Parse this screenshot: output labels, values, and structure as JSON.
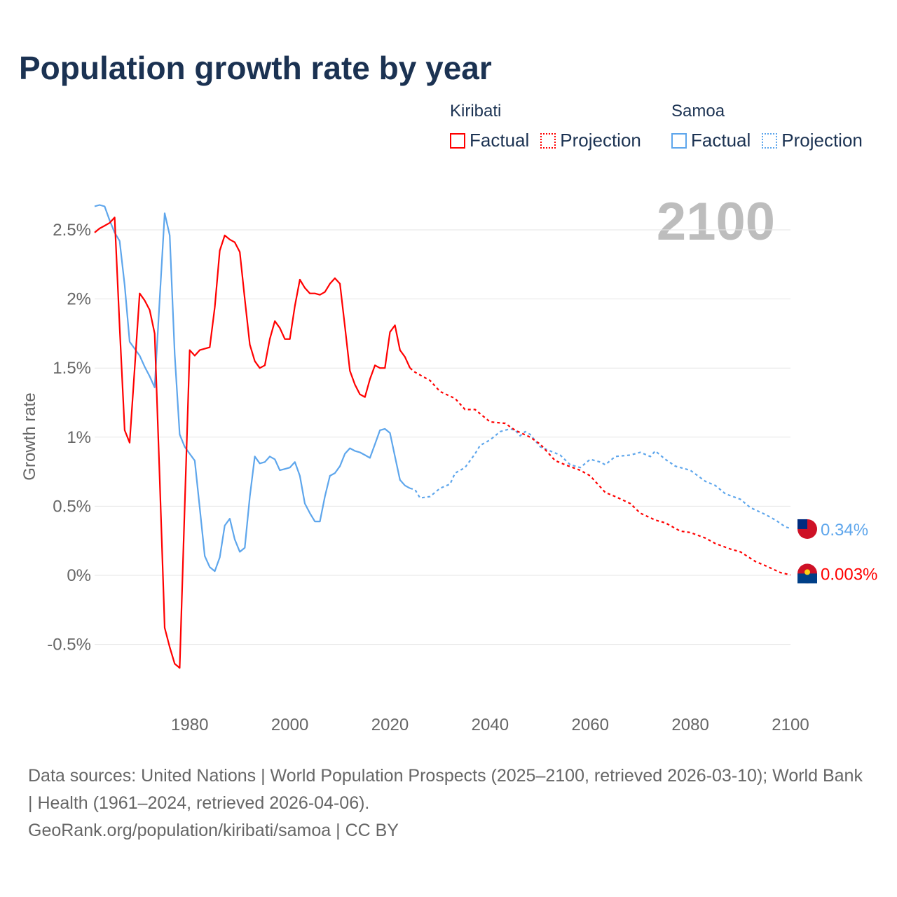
{
  "title": "Population growth rate by year",
  "legend": {
    "groups": [
      {
        "name": "Kiribati",
        "factual": "Factual",
        "projection": "Projection",
        "color": "#ff0000"
      },
      {
        "name": "Samoa",
        "factual": "Factual",
        "projection": "Projection",
        "color": "#5ea6ec"
      }
    ]
  },
  "footer": {
    "sources": "Data sources: United Nations | World Population Prospects (2025–2100, retrieved 2026-03-10); World Bank | Health (1961–2024, retrieved 2026-04-06).",
    "link": "GeoRank.org/population/kiribati/samoa | CC BY"
  },
  "chart_data": {
    "type": "line",
    "title": "Population growth rate by year",
    "current_year_label": "2100",
    "xlabel": "",
    "ylabel": "Growth rate",
    "xlim": [
      1961,
      2100
    ],
    "ylim": [
      -0.8,
      2.75
    ],
    "x_ticks": [
      {
        "v": 1980,
        "label": "1980"
      },
      {
        "v": 2000,
        "label": "2000"
      },
      {
        "v": 2020,
        "label": "2020"
      },
      {
        "v": 2040,
        "label": "2040"
      },
      {
        "v": 2060,
        "label": "2060"
      },
      {
        "v": 2080,
        "label": "2080"
      },
      {
        "v": 2100,
        "label": "2100"
      }
    ],
    "y_ticks": [
      {
        "v": 2.5,
        "label": "2.5%"
      },
      {
        "v": 2,
        "label": "2%"
      },
      {
        "v": 1.5,
        "label": "1.5%"
      },
      {
        "v": 1,
        "label": "1%"
      },
      {
        "v": 0.5,
        "label": "0.5%"
      },
      {
        "v": 0,
        "label": "0%"
      },
      {
        "v": -0.5,
        "label": "-0.5%"
      }
    ],
    "grid": true,
    "series": [
      {
        "name": "Kiribati",
        "color": "#ff0000",
        "end_label": "0.003%",
        "factual": [
          [
            1961,
            2.48
          ],
          [
            1962,
            2.51
          ],
          [
            1963,
            2.53
          ],
          [
            1964,
            2.55
          ],
          [
            1965,
            2.59
          ],
          [
            1966,
            1.8
          ],
          [
            1967,
            1.05
          ],
          [
            1968,
            0.96
          ],
          [
            1969,
            1.5
          ],
          [
            1970,
            2.04
          ],
          [
            1971,
            1.99
          ],
          [
            1972,
            1.92
          ],
          [
            1973,
            1.75
          ],
          [
            1974,
            0.7
          ],
          [
            1975,
            -0.38
          ],
          [
            1976,
            -0.52
          ],
          [
            1977,
            -0.64
          ],
          [
            1978,
            -0.67
          ],
          [
            1979,
            0.5
          ],
          [
            1980,
            1.63
          ],
          [
            1981,
            1.59
          ],
          [
            1982,
            1.63
          ],
          [
            1983,
            1.64
          ],
          [
            1984,
            1.65
          ],
          [
            1985,
            1.94
          ],
          [
            1986,
            2.35
          ],
          [
            1987,
            2.46
          ],
          [
            1988,
            2.43
          ],
          [
            1989,
            2.41
          ],
          [
            1990,
            2.34
          ],
          [
            1991,
            2.0
          ],
          [
            1992,
            1.67
          ],
          [
            1993,
            1.55
          ],
          [
            1994,
            1.5
          ],
          [
            1995,
            1.52
          ],
          [
            1996,
            1.71
          ],
          [
            1997,
            1.84
          ],
          [
            1998,
            1.79
          ],
          [
            1999,
            1.71
          ],
          [
            2000,
            1.71
          ],
          [
            2001,
            1.95
          ],
          [
            2002,
            2.14
          ],
          [
            2003,
            2.08
          ],
          [
            2004,
            2.04
          ],
          [
            2005,
            2.04
          ],
          [
            2006,
            2.03
          ],
          [
            2007,
            2.05
          ],
          [
            2008,
            2.11
          ],
          [
            2009,
            2.15
          ],
          [
            2010,
            2.11
          ],
          [
            2011,
            1.8
          ],
          [
            2012,
            1.48
          ],
          [
            2013,
            1.38
          ],
          [
            2014,
            1.31
          ],
          [
            2015,
            1.29
          ],
          [
            2016,
            1.42
          ],
          [
            2017,
            1.52
          ],
          [
            2018,
            1.5
          ],
          [
            2019,
            1.5
          ],
          [
            2020,
            1.76
          ],
          [
            2021,
            1.81
          ],
          [
            2022,
            1.63
          ],
          [
            2023,
            1.58
          ],
          [
            2024,
            1.5
          ]
        ],
        "projection": [
          [
            2024,
            1.5
          ],
          [
            2025,
            1.47
          ],
          [
            2028,
            1.41
          ],
          [
            2030,
            1.33
          ],
          [
            2033,
            1.28
          ],
          [
            2035,
            1.2
          ],
          [
            2037,
            1.2
          ],
          [
            2040,
            1.11
          ],
          [
            2043,
            1.1
          ],
          [
            2045,
            1.05
          ],
          [
            2048,
            1.0
          ],
          [
            2050,
            0.95
          ],
          [
            2053,
            0.83
          ],
          [
            2055,
            0.8
          ],
          [
            2058,
            0.76
          ],
          [
            2060,
            0.72
          ],
          [
            2063,
            0.6
          ],
          [
            2065,
            0.57
          ],
          [
            2068,
            0.52
          ],
          [
            2070,
            0.45
          ],
          [
            2073,
            0.4
          ],
          [
            2075,
            0.38
          ],
          [
            2078,
            0.32
          ],
          [
            2080,
            0.31
          ],
          [
            2083,
            0.27
          ],
          [
            2085,
            0.23
          ],
          [
            2088,
            0.19
          ],
          [
            2090,
            0.17
          ],
          [
            2093,
            0.1
          ],
          [
            2095,
            0.07
          ],
          [
            2098,
            0.02
          ],
          [
            2100,
            0.003
          ]
        ]
      },
      {
        "name": "Samoa",
        "color": "#5ea6ec",
        "end_label": "0.34%",
        "factual": [
          [
            1961,
            2.67
          ],
          [
            1962,
            2.68
          ],
          [
            1963,
            2.67
          ],
          [
            1964,
            2.57
          ],
          [
            1965,
            2.48
          ],
          [
            1966,
            2.42
          ],
          [
            1967,
            2.1
          ],
          [
            1968,
            1.69
          ],
          [
            1969,
            1.64
          ],
          [
            1970,
            1.59
          ],
          [
            1971,
            1.51
          ],
          [
            1972,
            1.44
          ],
          [
            1973,
            1.36
          ],
          [
            1974,
            2.0
          ],
          [
            1975,
            2.62
          ],
          [
            1976,
            2.46
          ],
          [
            1977,
            1.6
          ],
          [
            1978,
            1.02
          ],
          [
            1979,
            0.93
          ],
          [
            1980,
            0.88
          ],
          [
            1981,
            0.83
          ],
          [
            1982,
            0.49
          ],
          [
            1983,
            0.14
          ],
          [
            1984,
            0.06
          ],
          [
            1985,
            0.03
          ],
          [
            1986,
            0.13
          ],
          [
            1987,
            0.36
          ],
          [
            1988,
            0.41
          ],
          [
            1989,
            0.26
          ],
          [
            1990,
            0.17
          ],
          [
            1991,
            0.2
          ],
          [
            1992,
            0.57
          ],
          [
            1993,
            0.86
          ],
          [
            1994,
            0.81
          ],
          [
            1995,
            0.82
          ],
          [
            1996,
            0.86
          ],
          [
            1997,
            0.84
          ],
          [
            1998,
            0.76
          ],
          [
            1999,
            0.77
          ],
          [
            2000,
            0.78
          ],
          [
            2001,
            0.82
          ],
          [
            2002,
            0.72
          ],
          [
            2003,
            0.52
          ],
          [
            2004,
            0.45
          ],
          [
            2005,
            0.39
          ],
          [
            2006,
            0.39
          ],
          [
            2007,
            0.57
          ],
          [
            2008,
            0.72
          ],
          [
            2009,
            0.74
          ],
          [
            2010,
            0.79
          ],
          [
            2011,
            0.88
          ],
          [
            2012,
            0.92
          ],
          [
            2013,
            0.9
          ],
          [
            2014,
            0.89
          ],
          [
            2015,
            0.87
          ],
          [
            2016,
            0.85
          ],
          [
            2017,
            0.95
          ],
          [
            2018,
            1.05
          ],
          [
            2019,
            1.06
          ],
          [
            2020,
            1.03
          ],
          [
            2021,
            0.86
          ],
          [
            2022,
            0.69
          ],
          [
            2023,
            0.65
          ],
          [
            2024,
            0.63
          ]
        ],
        "projection": [
          [
            2024,
            0.63
          ],
          [
            2025,
            0.62
          ],
          [
            2026,
            0.56
          ],
          [
            2028,
            0.57
          ],
          [
            2030,
            0.63
          ],
          [
            2032,
            0.66
          ],
          [
            2033,
            0.74
          ],
          [
            2035,
            0.78
          ],
          [
            2037,
            0.88
          ],
          [
            2038,
            0.94
          ],
          [
            2040,
            0.98
          ],
          [
            2042,
            1.04
          ],
          [
            2044,
            1.06
          ],
          [
            2045,
            1.05
          ],
          [
            2046,
            1.01
          ],
          [
            2047,
            1.04
          ],
          [
            2048,
            1.02
          ],
          [
            2050,
            0.93
          ],
          [
            2052,
            0.9
          ],
          [
            2054,
            0.87
          ],
          [
            2056,
            0.8
          ],
          [
            2058,
            0.78
          ],
          [
            2060,
            0.84
          ],
          [
            2062,
            0.82
          ],
          [
            2063,
            0.8
          ],
          [
            2065,
            0.86
          ],
          [
            2068,
            0.87
          ],
          [
            2070,
            0.89
          ],
          [
            2072,
            0.86
          ],
          [
            2073,
            0.9
          ],
          [
            2075,
            0.84
          ],
          [
            2077,
            0.79
          ],
          [
            2080,
            0.76
          ],
          [
            2083,
            0.68
          ],
          [
            2085,
            0.65
          ],
          [
            2087,
            0.59
          ],
          [
            2090,
            0.55
          ],
          [
            2092,
            0.49
          ],
          [
            2095,
            0.44
          ],
          [
            2097,
            0.4
          ],
          [
            2099,
            0.35
          ],
          [
            2100,
            0.34
          ]
        ]
      }
    ]
  }
}
